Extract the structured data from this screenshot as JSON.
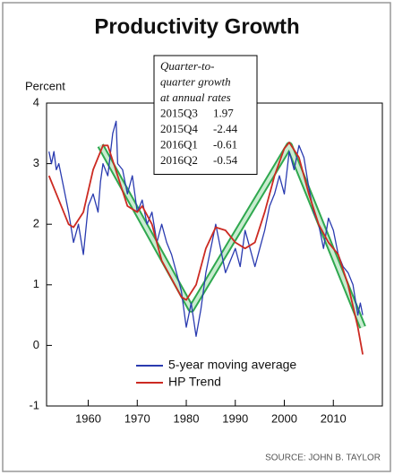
{
  "chart_data": {
    "type": "line",
    "title": "Productivity Growth",
    "y_label": "Percent",
    "source": "SOURCE: JOHN B. TAYLOR",
    "xlim": [
      1951.5,
      2020
    ],
    "xticks": [
      1960,
      1970,
      1980,
      1990,
      2000,
      2010
    ],
    "ylim": [
      -1,
      4
    ],
    "yticks": [
      -1,
      0,
      1,
      2,
      3,
      4
    ],
    "legend": "lower-left",
    "series": [
      {
        "name": "5-year moving average",
        "color": "#2a3bb0",
        "x": [
          1952,
          1952.5,
          1953,
          1953.5,
          1954,
          1955,
          1956,
          1957,
          1958,
          1959,
          1960,
          1961,
          1962,
          1962.5,
          1963,
          1964,
          1965,
          1965.7,
          1966,
          1967,
          1968,
          1969,
          1970,
          1971,
          1972,
          1973,
          1974,
          1975,
          1976,
          1977,
          1978,
          1979,
          1980,
          1981,
          1982,
          1983,
          1984,
          1985,
          1986,
          1987,
          1988,
          1989,
          1990,
          1991,
          1992,
          1993,
          1994,
          1995,
          1996,
          1997,
          1998,
          1999,
          2000,
          2001,
          2002,
          2003,
          2004,
          2005,
          2006,
          2007,
          2008,
          2009,
          2010,
          2011,
          2012,
          2013,
          2014,
          2015,
          2015.5,
          2016
        ],
        "values": [
          3.2,
          3.0,
          3.2,
          2.9,
          3.0,
          2.6,
          2.2,
          1.7,
          2.0,
          1.5,
          2.3,
          2.5,
          2.2,
          2.7,
          3.0,
          2.8,
          3.5,
          3.7,
          3.0,
          2.9,
          2.5,
          2.8,
          2.2,
          2.4,
          2.0,
          2.2,
          1.7,
          2.0,
          1.7,
          1.5,
          1.2,
          0.9,
          0.3,
          0.7,
          0.15,
          0.6,
          1.2,
          1.6,
          2.0,
          1.6,
          1.2,
          1.4,
          1.6,
          1.3,
          1.9,
          1.6,
          1.3,
          1.6,
          1.9,
          2.3,
          2.5,
          2.8,
          2.5,
          3.2,
          2.9,
          3.3,
          3.1,
          2.6,
          2.2,
          2.0,
          1.6,
          2.1,
          1.9,
          1.5,
          1.3,
          1.2,
          1.0,
          0.5,
          0.7,
          0.5
        ]
      },
      {
        "name": "HP Trend",
        "color": "#cc2a22",
        "x": [
          1952,
          1954,
          1956,
          1957,
          1959,
          1961,
          1963,
          1964,
          1966,
          1968,
          1970,
          1971,
          1973,
          1975,
          1977,
          1979,
          1980,
          1982,
          1984,
          1986,
          1988,
          1990,
          1992,
          1994,
          1996,
          1998,
          2000,
          2001,
          2003,
          2005,
          2007,
          2009,
          2011,
          2013,
          2015,
          2016
        ],
        "values": [
          2.8,
          2.4,
          2.0,
          1.95,
          2.2,
          2.9,
          3.3,
          3.3,
          2.8,
          2.3,
          2.2,
          2.3,
          2.0,
          1.4,
          1.1,
          0.8,
          0.75,
          1.0,
          1.6,
          1.95,
          1.9,
          1.7,
          1.6,
          1.7,
          2.2,
          2.8,
          3.25,
          3.35,
          3.1,
          2.5,
          2.0,
          1.7,
          1.5,
          1.0,
          0.3,
          -0.15
        ]
      }
    ],
    "trend_band": {
      "color": "#2fa84f",
      "x": [
        1962.5,
        1981,
        2001,
        2016
      ],
      "values": [
        3.3,
        0.6,
        3.3,
        0.3
      ]
    },
    "annotation": {
      "title_lines": [
        "Quarter-to-",
        "quarter growth",
        "at annual rates"
      ],
      "rows": [
        {
          "label": "2015Q3",
          "value": 1.97
        },
        {
          "label": "2015Q4",
          "value": -2.44
        },
        {
          "label": "2016Q1",
          "value": -0.61
        },
        {
          "label": "2016Q2",
          "value": -0.54
        }
      ]
    }
  }
}
